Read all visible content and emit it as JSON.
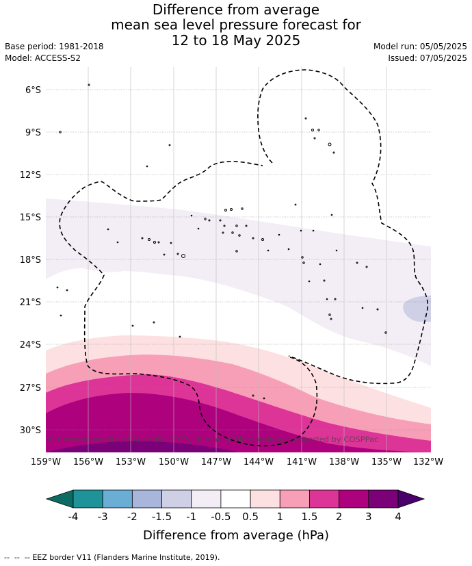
{
  "title": {
    "line1": "Difference from average",
    "line2": "mean sea level pressure forecast for",
    "line3": "12 to 18 May 2025"
  },
  "info": {
    "base_period": "Base period: 1981-2018",
    "model": "Model: ACCESS-S2",
    "model_run": "Model run: 05/05/2025",
    "issued": "Issued: 07/05/2025"
  },
  "map": {
    "lat_labels": [
      "6°S",
      "9°S",
      "12°S",
      "15°S",
      "18°S",
      "21°S",
      "24°S",
      "27°S",
      "30°S"
    ],
    "lon_labels": [
      "159°W",
      "156°W",
      "153°W",
      "150°W",
      "147°W",
      "144°W",
      "141°W",
      "138°W",
      "135°W",
      "132°W"
    ],
    "copyright": "© Commonwealth of Australia 2025, Bureau of Meteorology; supported by COSPPac",
    "eez_line_style": "dashed"
  },
  "colorbar": {
    "ticks": [
      "-4",
      "-3",
      "-2",
      "-1.5",
      "-1",
      "-0.5",
      "0.5",
      "1",
      "1.5",
      "2",
      "3",
      "4"
    ],
    "colors": [
      "#1f9399",
      "#6aaed6",
      "#a8b6dc",
      "#cfd0e6",
      "#f3eef6",
      "#ffffff",
      "#fde1e2",
      "#f89fb8",
      "#dd3497",
      "#ae017e",
      "#7a0177"
    ],
    "under_color": "#0e6b64",
    "over_color": "#49006a",
    "label": "Difference from average (hPa)"
  },
  "legend": {
    "eez": "EEZ border V11 (Flanders Marine Institute, 2019)."
  }
}
